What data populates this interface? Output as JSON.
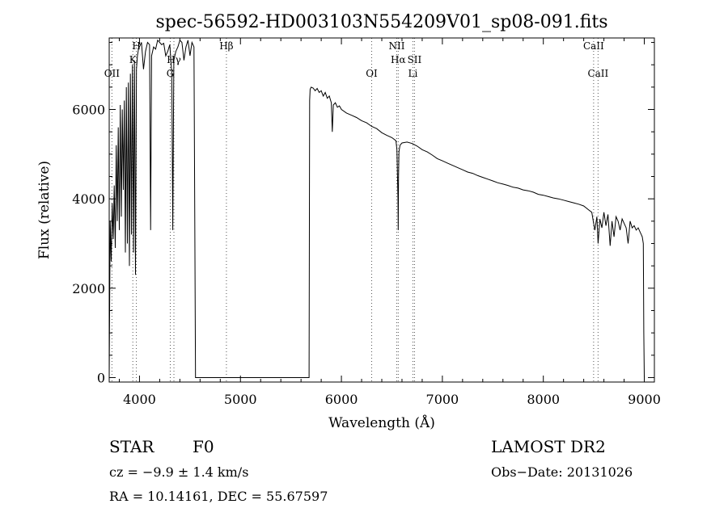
{
  "chart_data": {
    "type": "line",
    "title": "spec-56592-HD003103N554209V01_sp08-091.fits",
    "xlabel": "Wavelength (Å)",
    "ylabel": "Flux (relative)",
    "xlim": [
      3700,
      9100
    ],
    "ylim": [
      -100,
      7600
    ],
    "x_ticks": [
      4000,
      5000,
      6000,
      7000,
      8000,
      9000
    ],
    "y_ticks": [
      0,
      2000,
      4000,
      6000
    ],
    "grid": false,
    "series": [
      {
        "x": [
          3700,
          3710,
          3720,
          3730,
          3740,
          3750,
          3760,
          3770,
          3780,
          3790,
          3800,
          3810,
          3820,
          3830,
          3840,
          3850,
          3860,
          3870,
          3880,
          3890,
          3900,
          3910,
          3920,
          3930,
          3940,
          3950,
          3960,
          3970,
          3980,
          3990,
          4000,
          4020,
          4040,
          4060,
          4080,
          4100,
          4110,
          4120,
          4140,
          4160,
          4180,
          4200,
          4220,
          4240,
          4260,
          4280,
          4300,
          4320,
          4330,
          4340,
          4350,
          4360,
          4380,
          4400,
          4420,
          4440,
          4460,
          4480,
          4500,
          4520,
          4540,
          4555,
          4560,
          4565,
          4570,
          5680,
          5685,
          5690,
          5700,
          5720,
          5740,
          5760,
          5780,
          5800,
          5820,
          5840,
          5860,
          5880,
          5900,
          5910,
          5920,
          5940,
          5960,
          5980,
          6000,
          6050,
          6100,
          6150,
          6200,
          6250,
          6300,
          6350,
          6400,
          6450,
          6500,
          6540,
          6550,
          6560,
          6563,
          6566,
          6570,
          6580,
          6600,
          6650,
          6700,
          6750,
          6800,
          6850,
          6900,
          6950,
          7000,
          7050,
          7100,
          7150,
          7200,
          7250,
          7300,
          7350,
          7400,
          7450,
          7500,
          7550,
          7600,
          7650,
          7700,
          7750,
          7800,
          7850,
          7900,
          7950,
          8000,
          8050,
          8100,
          8150,
          8200,
          8250,
          8300,
          8350,
          8400,
          8450,
          8480,
          8498,
          8510,
          8530,
          8542,
          8560,
          8580,
          8600,
          8620,
          8640,
          8662,
          8680,
          8700,
          8720,
          8740,
          8760,
          8780,
          8800,
          8820,
          8840,
          8860,
          8880,
          8900,
          8920,
          8940,
          8960,
          8970,
          8980,
          8990,
          8995,
          9000
        ],
        "y": [
          0,
          3500,
          2600,
          3900,
          3100,
          4300,
          2900,
          5200,
          3500,
          5600,
          3300,
          6100,
          3600,
          6000,
          4200,
          6200,
          2800,
          6500,
          3000,
          6600,
          2500,
          6800,
          3200,
          7000,
          2800,
          7100,
          2300,
          6900,
          7200,
          7350,
          7400,
          7500,
          6900,
          7300,
          7500,
          7450,
          3300,
          7200,
          7400,
          7350,
          7550,
          7500,
          7450,
          7480,
          7200,
          7300,
          7450,
          6800,
          3300,
          7100,
          7200,
          7300,
          7400,
          7550,
          7500,
          7100,
          7400,
          7550,
          7200,
          7500,
          7400,
          0,
          0,
          0,
          0,
          0,
          6200,
          6450,
          6500,
          6480,
          6420,
          6470,
          6380,
          6420,
          6300,
          6380,
          6250,
          6300,
          6150,
          5500,
          6100,
          6150,
          6050,
          6080,
          6000,
          5920,
          5870,
          5820,
          5750,
          5700,
          5620,
          5570,
          5480,
          5420,
          5370,
          5300,
          5100,
          4000,
          3300,
          4500,
          5050,
          5200,
          5250,
          5270,
          5240,
          5180,
          5100,
          5050,
          4980,
          4900,
          4850,
          4800,
          4750,
          4700,
          4650,
          4600,
          4570,
          4520,
          4480,
          4440,
          4400,
          4360,
          4330,
          4300,
          4260,
          4240,
          4200,
          4180,
          4150,
          4100,
          4080,
          4050,
          4020,
          4000,
          3970,
          3940,
          3910,
          3880,
          3840,
          3750,
          3700,
          3450,
          3300,
          3600,
          3000,
          3550,
          3350,
          3700,
          3400,
          3650,
          2950,
          3500,
          3150,
          3600,
          3500,
          3300,
          3550,
          3450,
          3350,
          3000,
          3500,
          3350,
          3400,
          3300,
          3350,
          3250,
          3200,
          3150,
          3000,
          1000,
          0
        ]
      }
    ],
    "annotations": [
      {
        "label": "OII",
        "x": 3727
      },
      {
        "label": "K",
        "x": 3934
      },
      {
        "label": "H",
        "x": 3969
      },
      {
        "label": "G",
        "x": 4305
      },
      {
        "label": "Hγ",
        "x": 4341
      },
      {
        "label": "Hβ",
        "x": 4861
      },
      {
        "label": "OI",
        "x": 6300
      },
      {
        "label": "NII",
        "x": 6548
      },
      {
        "label": "Hα",
        "x": 6563
      },
      {
        "label": "Li",
        "x": 6708
      },
      {
        "label": "SII",
        "x": 6724
      },
      {
        "label": "CaII",
        "x": 8498
      },
      {
        "label": "CaII",
        "x": 8542
      }
    ]
  },
  "info": {
    "class_label": "STAR",
    "subclass": "F0",
    "survey": "LAMOST DR2",
    "cz": "cz = −9.9 ± 1.4 km/s",
    "obs_date": "Obs−Date: 20131026",
    "radec": "RA =   10.14161, DEC =   55.67597"
  }
}
